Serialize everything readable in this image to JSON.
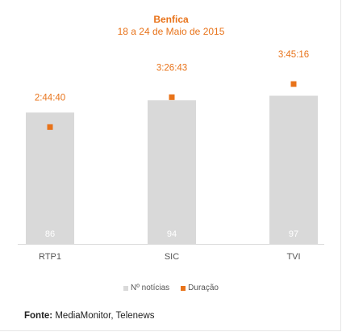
{
  "chart_data": {
    "type": "bar",
    "title": "Benfica",
    "subtitle": "18 a 24 de Maio de 2015",
    "categories": [
      "RTP1",
      "SIC",
      "TVI"
    ],
    "series": [
      {
        "name": "Nº notícias",
        "type": "bar",
        "values": [
          86,
          94,
          97
        ],
        "color": "#d9d9d9"
      },
      {
        "name": "Duração",
        "type": "marker",
        "values": [
          "2:44:40",
          "3:26:43",
          "3:45:16"
        ],
        "seconds": [
          9880,
          12403,
          13516
        ],
        "color": "#e8731a"
      }
    ],
    "ylim": [
      0,
      120
    ],
    "y2lim": [
      0,
      15500
    ],
    "grid": false,
    "legend_position": "bottom"
  },
  "source": {
    "label": "Fonte:",
    "text": "MediaMonitor, Telenews"
  }
}
